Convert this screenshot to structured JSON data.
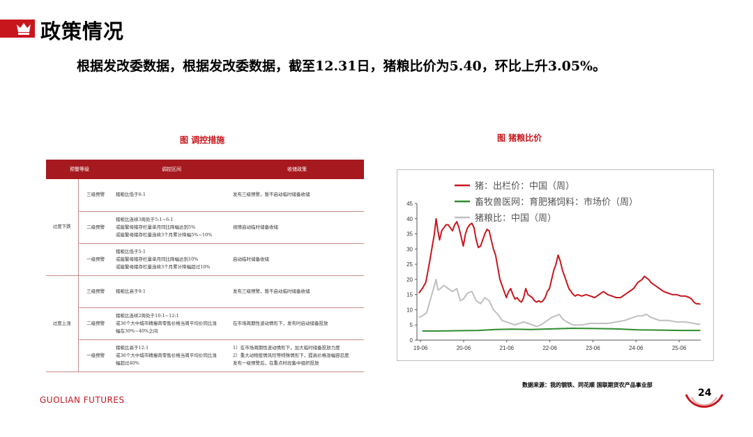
{
  "header": {
    "title": "政策情况",
    "summary": "根据发改委数据，根据发改委数据，截至12.31日，猪粮比价为5.40，环比上升3.05%。"
  },
  "table": {
    "caption": "图  调控措施",
    "headers": [
      "预警等级",
      "调控区间",
      "收储政策"
    ],
    "groups": [
      {
        "direction": "过度下跌",
        "rows": [
          {
            "level": "三级预警",
            "range": [
              "猪粮比低于6:1"
            ],
            "policy": [
              "发布三级预警，暂不启动临时储备收储"
            ]
          },
          {
            "level": "二级预警",
            "range": [
              "猪粮比连续3周处于5:1~6:1",
              "或能繁母猪存栏量单月同比降幅达到5%",
              "或能繁母猪存栏量连续3个月累计降幅5%~10%"
            ],
            "policy": [
              "视情启动临时储备收储"
            ]
          },
          {
            "level": "一级预警",
            "range": [
              "猪粮比低于5:1",
              "或能繁母猪存栏量单月同比降幅达到10%",
              "或能繁母猪存栏量连续3个月累计降幅超过10%"
            ],
            "policy": [
              "启动临时储备收储"
            ]
          }
        ]
      },
      {
        "direction": "过度上涨",
        "rows": [
          {
            "level": "三级预警",
            "range": [
              "猪粮比高于9:1"
            ],
            "policy": [
              "发布三级预警，暂不启动临时储备收储"
            ]
          },
          {
            "level": "二级预警",
            "range": [
              "猪粮比连续2周处于10:1~12:1",
              "或36个大中城市精瘦肉零售价格当周平均价同比涨",
              "幅在30%~40%之间"
            ],
            "policy": [
              "在市场周期性波动情形下，发布时启动储备投放"
            ]
          },
          {
            "level": "一级预警",
            "range": [
              "猪粮比高于12:1",
              "或36个大中城市精瘦肉零售价格当周平均价同比涨",
              "幅超过40%"
            ],
            "policy": [
              "1）在市场周期性波动情形下，加大临时储备投放力度",
              "2）重大动物疫情风险等特殊情形下，提高价格涨幅容忍度",
              "发布一级预警后，在重点时段集中组织投放"
            ]
          }
        ]
      }
    ]
  },
  "chart_caption": "图  猪粮比价",
  "chart_data": {
    "type": "line",
    "ylim": [
      0,
      45
    ],
    "yticks": [
      0,
      5,
      10,
      15,
      20,
      25,
      30,
      35,
      40,
      45
    ],
    "xlim": [
      2019.375,
      2025.958
    ],
    "xticks": [
      {
        "label": "19-06",
        "x": 2019.458
      },
      {
        "label": "20-06",
        "x": 2020.458
      },
      {
        "label": "21-06",
        "x": 2021.458
      },
      {
        "label": "22-06",
        "x": 2022.458
      },
      {
        "label": "23-06",
        "x": 2023.458
      },
      {
        "label": "24-06",
        "x": 2024.458
      },
      {
        "label": "25-06",
        "x": 2025.458
      }
    ],
    "legend_position": "top-left",
    "series": [
      {
        "name": "猪：出栏价：中国（周）",
        "color": "#c8161d",
        "points": [
          [
            2019.42,
            15.5
          ],
          [
            2019.5,
            17
          ],
          [
            2019.58,
            19
          ],
          [
            2019.66,
            25
          ],
          [
            2019.72,
            30
          ],
          [
            2019.78,
            35
          ],
          [
            2019.82,
            40
          ],
          [
            2019.86,
            36
          ],
          [
            2019.9,
            33
          ],
          [
            2019.95,
            36
          ],
          [
            2020.0,
            37
          ],
          [
            2020.05,
            38
          ],
          [
            2020.1,
            38
          ],
          [
            2020.15,
            37
          ],
          [
            2020.2,
            36
          ],
          [
            2020.25,
            38
          ],
          [
            2020.3,
            39
          ],
          [
            2020.35,
            37
          ],
          [
            2020.4,
            34
          ],
          [
            2020.45,
            31
          ],
          [
            2020.5,
            35
          ],
          [
            2020.55,
            37
          ],
          [
            2020.6,
            38
          ],
          [
            2020.65,
            38.5
          ],
          [
            2020.7,
            37
          ],
          [
            2020.75,
            33
          ],
          [
            2020.8,
            30.5
          ],
          [
            2020.85,
            31
          ],
          [
            2020.9,
            33
          ],
          [
            2020.95,
            35
          ],
          [
            2021.0,
            36.5
          ],
          [
            2021.05,
            36
          ],
          [
            2021.1,
            33
          ],
          [
            2021.15,
            30
          ],
          [
            2021.2,
            28
          ],
          [
            2021.25,
            24
          ],
          [
            2021.3,
            20
          ],
          [
            2021.35,
            18
          ],
          [
            2021.4,
            16
          ],
          [
            2021.45,
            14
          ],
          [
            2021.5,
            16
          ],
          [
            2021.55,
            17
          ],
          [
            2021.6,
            15
          ],
          [
            2021.65,
            13.5
          ],
          [
            2021.7,
            14
          ],
          [
            2021.75,
            13
          ],
          [
            2021.8,
            12.5
          ],
          [
            2021.85,
            14
          ],
          [
            2021.9,
            17
          ],
          [
            2021.95,
            15
          ],
          [
            2022.0,
            14.5
          ],
          [
            2022.05,
            14
          ],
          [
            2022.1,
            13
          ],
          [
            2022.15,
            12.5
          ],
          [
            2022.2,
            13
          ],
          [
            2022.25,
            12.5
          ],
          [
            2022.3,
            13
          ],
          [
            2022.35,
            14
          ],
          [
            2022.4,
            16
          ],
          [
            2022.45,
            17
          ],
          [
            2022.5,
            20
          ],
          [
            2022.55,
            23
          ],
          [
            2022.6,
            25
          ],
          [
            2022.65,
            28
          ],
          [
            2022.7,
            26
          ],
          [
            2022.75,
            23
          ],
          [
            2022.8,
            21
          ],
          [
            2022.85,
            19
          ],
          [
            2022.9,
            17
          ],
          [
            2022.95,
            16
          ],
          [
            2023.0,
            15
          ],
          [
            2023.05,
            14.5
          ],
          [
            2023.1,
            15
          ],
          [
            2023.2,
            14.5
          ],
          [
            2023.3,
            15
          ],
          [
            2023.4,
            14.5
          ],
          [
            2023.5,
            14
          ],
          [
            2023.6,
            15
          ],
          [
            2023.7,
            16
          ],
          [
            2023.8,
            15
          ],
          [
            2023.9,
            14.5
          ],
          [
            2024.0,
            14
          ],
          [
            2024.1,
            14
          ],
          [
            2024.2,
            15
          ],
          [
            2024.3,
            16
          ],
          [
            2024.4,
            17
          ],
          [
            2024.5,
            19
          ],
          [
            2024.6,
            20
          ],
          [
            2024.65,
            21
          ],
          [
            2024.7,
            20.5
          ],
          [
            2024.75,
            20
          ],
          [
            2024.8,
            19
          ],
          [
            2024.9,
            18
          ],
          [
            2025.0,
            17
          ],
          [
            2025.1,
            16
          ],
          [
            2025.2,
            15.5
          ],
          [
            2025.3,
            15
          ],
          [
            2025.4,
            15
          ],
          [
            2025.5,
            14.5
          ],
          [
            2025.6,
            14.5
          ],
          [
            2025.7,
            14
          ],
          [
            2025.75,
            13.5
          ],
          [
            2025.8,
            12.5
          ],
          [
            2025.85,
            12
          ],
          [
            2025.9,
            12
          ],
          [
            2025.95,
            11.8
          ]
        ]
      },
      {
        "name": "畜牧兽医网：育肥猪饲料：市场价（周）",
        "color": "#2e8b2e",
        "points": [
          [
            2019.5,
            3.0
          ],
          [
            2019.9,
            3.0
          ],
          [
            2020.3,
            3.1
          ],
          [
            2020.8,
            3.2
          ],
          [
            2021.2,
            3.5
          ],
          [
            2021.6,
            3.6
          ],
          [
            2022.0,
            3.5
          ],
          [
            2022.5,
            3.7
          ],
          [
            2023.0,
            3.9
          ],
          [
            2023.5,
            3.8
          ],
          [
            2024.0,
            3.7
          ],
          [
            2024.5,
            3.4
          ],
          [
            2025.0,
            3.3
          ],
          [
            2025.5,
            3.2
          ],
          [
            2025.95,
            3.2
          ]
        ]
      },
      {
        "name": "猪粮比：中国（周）",
        "color": "#bfbfbf",
        "points": [
          [
            2019.42,
            7.5
          ],
          [
            2019.5,
            8
          ],
          [
            2019.6,
            9
          ],
          [
            2019.7,
            14
          ],
          [
            2019.78,
            18
          ],
          [
            2019.82,
            20
          ],
          [
            2019.86,
            16.5
          ],
          [
            2019.92,
            17
          ],
          [
            2020.0,
            18
          ],
          [
            2020.1,
            17
          ],
          [
            2020.2,
            16
          ],
          [
            2020.3,
            17
          ],
          [
            2020.38,
            13
          ],
          [
            2020.45,
            13.5
          ],
          [
            2020.55,
            15.5
          ],
          [
            2020.65,
            16
          ],
          [
            2020.75,
            13
          ],
          [
            2020.85,
            12
          ],
          [
            2020.95,
            14
          ],
          [
            2021.05,
            13
          ],
          [
            2021.15,
            10
          ],
          [
            2021.25,
            8.5
          ],
          [
            2021.35,
            6.5
          ],
          [
            2021.45,
            6
          ],
          [
            2021.55,
            5.5
          ],
          [
            2021.65,
            5
          ],
          [
            2021.75,
            5.5
          ],
          [
            2021.85,
            6
          ],
          [
            2021.95,
            5.5
          ],
          [
            2022.05,
            5
          ],
          [
            2022.15,
            4.5
          ],
          [
            2022.25,
            5
          ],
          [
            2022.35,
            6
          ],
          [
            2022.5,
            7.5
          ],
          [
            2022.6,
            8
          ],
          [
            2022.68,
            8.5
          ],
          [
            2022.75,
            7
          ],
          [
            2022.85,
            6
          ],
          [
            2023.0,
            5
          ],
          [
            2023.2,
            5
          ],
          [
            2023.4,
            5.5
          ],
          [
            2023.6,
            5.5
          ],
          [
            2023.8,
            5.5
          ],
          [
            2024.0,
            6
          ],
          [
            2024.2,
            6.5
          ],
          [
            2024.4,
            7.5
          ],
          [
            2024.5,
            8
          ],
          [
            2024.6,
            8
          ],
          [
            2024.7,
            8.5
          ],
          [
            2024.8,
            7.5
          ],
          [
            2024.9,
            7
          ],
          [
            2025.0,
            6.5
          ],
          [
            2025.2,
            6.5
          ],
          [
            2025.4,
            6
          ],
          [
            2025.6,
            6
          ],
          [
            2025.8,
            5.5
          ],
          [
            2025.9,
            5.2
          ],
          [
            2025.95,
            5.4
          ]
        ]
      }
    ]
  },
  "source": "数据来源：我的钢铁、同花顺  国联期货农产品事业部",
  "footer": {
    "logo": "GUOLIAN FUTURES",
    "page": "24"
  },
  "colors": {
    "brand_red": "#c8161d",
    "table_header": "#a6191f"
  }
}
